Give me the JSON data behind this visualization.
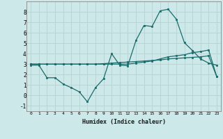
{
  "xlabel": "Humidex (Indice chaleur)",
  "background_color": "#cce8e8",
  "grid_color": "#b8d4d4",
  "line_color": "#1a6b6b",
  "ylim": [
    -1.5,
    9.0
  ],
  "xlim": [
    -0.5,
    23.5
  ],
  "yticks": [
    -1,
    0,
    1,
    2,
    3,
    4,
    5,
    6,
    7,
    8
  ],
  "xticks": [
    0,
    1,
    2,
    3,
    4,
    5,
    6,
    7,
    8,
    9,
    10,
    11,
    12,
    13,
    14,
    15,
    16,
    17,
    18,
    19,
    20,
    21,
    22,
    23
  ],
  "series1_x": [
    0,
    1,
    2,
    3,
    4,
    5,
    6,
    7,
    8,
    9,
    10,
    11,
    12,
    13,
    14,
    15,
    16,
    17,
    18,
    19,
    20,
    21,
    22,
    23
  ],
  "series1_y": [
    2.9,
    2.9,
    1.7,
    1.7,
    1.1,
    0.75,
    0.35,
    -0.6,
    0.75,
    1.6,
    4.0,
    2.9,
    2.85,
    5.25,
    6.7,
    6.6,
    8.1,
    8.25,
    7.3,
    5.05,
    4.3,
    3.5,
    3.1,
    2.9
  ],
  "series2_x": [
    0,
    1,
    2,
    3,
    4,
    5,
    6,
    7,
    8,
    9,
    10,
    11,
    12,
    13,
    14,
    15,
    16,
    17,
    18,
    19,
    20,
    21,
    22,
    23
  ],
  "series2_y": [
    3.0,
    3.0,
    3.0,
    3.0,
    3.0,
    3.0,
    3.0,
    3.0,
    3.0,
    3.0,
    3.0,
    3.0,
    3.0,
    3.1,
    3.2,
    3.3,
    3.5,
    3.7,
    3.8,
    3.9,
    4.1,
    4.2,
    4.35,
    1.8
  ],
  "series3_x": [
    0,
    1,
    2,
    3,
    4,
    5,
    6,
    7,
    8,
    9,
    10,
    11,
    12,
    13,
    14,
    15,
    16,
    17,
    18,
    19,
    20,
    21,
    22,
    23
  ],
  "series3_y": [
    3.0,
    3.0,
    3.0,
    3.0,
    3.0,
    3.0,
    3.0,
    3.0,
    3.0,
    3.05,
    3.1,
    3.15,
    3.2,
    3.25,
    3.3,
    3.35,
    3.4,
    3.5,
    3.55,
    3.6,
    3.65,
    3.7,
    3.8,
    1.8
  ]
}
